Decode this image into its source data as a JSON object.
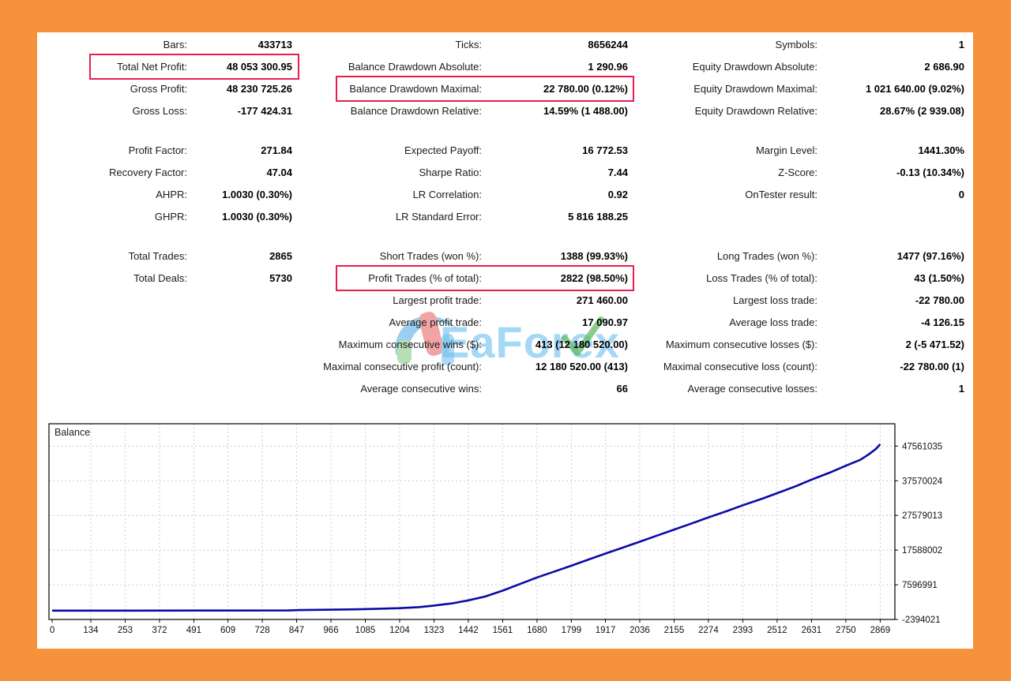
{
  "colors": {
    "frame_orange": "#F6923C",
    "highlight_red": "#E91E50",
    "line_navy": "#0A0AA8",
    "watermark_blue": "#6EC1F0",
    "grid_gray": "#CCCCCC"
  },
  "watermark": {
    "text": "EaForex"
  },
  "report": {
    "sections": [
      {
        "rows": [
          {
            "cells": [
              {
                "label": "Bars:",
                "value": "433713",
                "boxed": false
              },
              {
                "label": "Ticks:",
                "value": "8656244",
                "boxed": false
              },
              {
                "label": "Symbols:",
                "value": "1",
                "boxed": false
              }
            ]
          },
          {
            "cells": [
              {
                "label": "Total Net Profit:",
                "value": "48 053 300.95",
                "boxed": true
              },
              {
                "label": "Balance Drawdown Absolute:",
                "value": "1 290.96",
                "boxed": false
              },
              {
                "label": "Equity Drawdown Absolute:",
                "value": "2 686.90",
                "boxed": false
              }
            ]
          },
          {
            "cells": [
              {
                "label": "Gross Profit:",
                "value": "48 230 725.26",
                "boxed": false
              },
              {
                "label": "Balance Drawdown Maximal:",
                "value": "22 780.00 (0.12%)",
                "boxed": true
              },
              {
                "label": "Equity Drawdown Maximal:",
                "value": "1 021 640.00 (9.02%)",
                "boxed": false
              }
            ]
          },
          {
            "cells": [
              {
                "label": "Gross Loss:",
                "value": "-177 424.31",
                "boxed": false
              },
              {
                "label": "Balance Drawdown Relative:",
                "value": "14.59% (1 488.00)",
                "boxed": false
              },
              {
                "label": "Equity Drawdown Relative:",
                "value": "28.67% (2 939.08)",
                "boxed": false
              }
            ]
          }
        ]
      },
      {
        "rows": [
          {
            "cells": [
              {
                "label": "Profit Factor:",
                "value": "271.84",
                "boxed": false
              },
              {
                "label": "Expected Payoff:",
                "value": "16 772.53",
                "boxed": false
              },
              {
                "label": "Margin Level:",
                "value": "1441.30%",
                "boxed": false
              }
            ]
          },
          {
            "cells": [
              {
                "label": "Recovery Factor:",
                "value": "47.04",
                "boxed": false
              },
              {
                "label": "Sharpe Ratio:",
                "value": "7.44",
                "boxed": false
              },
              {
                "label": "Z-Score:",
                "value": "-0.13 (10.34%)",
                "boxed": false
              }
            ]
          },
          {
            "cells": [
              {
                "label": "AHPR:",
                "value": "1.0030 (0.30%)",
                "boxed": false
              },
              {
                "label": "LR Correlation:",
                "value": "0.92",
                "boxed": false
              },
              {
                "label": "OnTester result:",
                "value": "0",
                "boxed": false
              }
            ]
          },
          {
            "cells": [
              {
                "label": "GHPR:",
                "value": "1.0030 (0.30%)",
                "boxed": false
              },
              {
                "label": "LR Standard Error:",
                "value": "5 816 188.25",
                "boxed": false
              },
              {
                "label": "",
                "value": "",
                "boxed": false
              }
            ]
          }
        ]
      },
      {
        "rows": [
          {
            "cells": [
              {
                "label": "Total Trades:",
                "value": "2865",
                "boxed": false
              },
              {
                "label": "Short Trades (won %):",
                "value": "1388 (99.93%)",
                "boxed": false
              },
              {
                "label": "Long Trades (won %):",
                "value": "1477 (97.16%)",
                "boxed": false
              }
            ]
          },
          {
            "cells": [
              {
                "label": "Total Deals:",
                "value": "5730",
                "boxed": false
              },
              {
                "label": "Profit Trades (% of total):",
                "value": "2822 (98.50%)",
                "boxed": true
              },
              {
                "label": "Loss Trades (% of total):",
                "value": "43 (1.50%)",
                "boxed": false
              }
            ]
          },
          {
            "cells": [
              {
                "label": "",
                "value": "",
                "boxed": false
              },
              {
                "label": "Largest profit trade:",
                "value": "271 460.00",
                "boxed": false
              },
              {
                "label": "Largest loss trade:",
                "value": "-22 780.00",
                "boxed": false
              }
            ]
          },
          {
            "cells": [
              {
                "label": "",
                "value": "",
                "boxed": false
              },
              {
                "label": "Average profit trade:",
                "value": "17 090.97",
                "boxed": false
              },
              {
                "label": "Average loss trade:",
                "value": "-4 126.15",
                "boxed": false
              }
            ]
          },
          {
            "cells": [
              {
                "label": "",
                "value": "",
                "boxed": false
              },
              {
                "label": "Maximum consecutive wins ($):",
                "value": "413 (12 180 520.00)",
                "boxed": false
              },
              {
                "label": "Maximum consecutive losses ($):",
                "value": "2 (-5 471.52)",
                "boxed": false
              }
            ]
          },
          {
            "cells": [
              {
                "label": "",
                "value": "",
                "boxed": false
              },
              {
                "label": "Maximal consecutive profit (count):",
                "value": "12 180 520.00 (413)",
                "boxed": false
              },
              {
                "label": "Maximal consecutive loss (count):",
                "value": "-22 780.00 (1)",
                "boxed": false
              }
            ]
          },
          {
            "cells": [
              {
                "label": "",
                "value": "",
                "boxed": false
              },
              {
                "label": "Average consecutive wins:",
                "value": "66",
                "boxed": false
              },
              {
                "label": "Average consecutive losses:",
                "value": "1",
                "boxed": false
              }
            ]
          }
        ]
      }
    ]
  },
  "chart_data": {
    "type": "line",
    "title": "Balance",
    "xlabel": "",
    "ylabel": "",
    "xlim": [
      -11,
      2920
    ],
    "ylim": [
      -2394021,
      54000000
    ],
    "grid": true,
    "x_ticks": [
      0,
      134,
      253,
      372,
      491,
      609,
      728,
      847,
      966,
      1085,
      1204,
      1323,
      1442,
      1561,
      1680,
      1799,
      1917,
      2036,
      2155,
      2274,
      2393,
      2512,
      2631,
      2750,
      2869
    ],
    "y_ticks": [
      47561035,
      37570024,
      27579013,
      17588002,
      7596991,
      -2394021
    ],
    "series": [
      {
        "name": "Balance",
        "color": "#0A0AA8",
        "points": [
          [
            0,
            150000
          ],
          [
            300,
            150000
          ],
          [
            600,
            180000
          ],
          [
            820,
            200000
          ],
          [
            860,
            320000
          ],
          [
            950,
            400000
          ],
          [
            1050,
            520000
          ],
          [
            1120,
            650000
          ],
          [
            1204,
            850000
          ],
          [
            1270,
            1150000
          ],
          [
            1323,
            1600000
          ],
          [
            1390,
            2300000
          ],
          [
            1442,
            3100000
          ],
          [
            1500,
            4200000
          ],
          [
            1561,
            5900000
          ],
          [
            1620,
            7800000
          ],
          [
            1680,
            9700000
          ],
          [
            1740,
            11400000
          ],
          [
            1799,
            13100000
          ],
          [
            1860,
            14900000
          ],
          [
            1917,
            16600000
          ],
          [
            1980,
            18400000
          ],
          [
            2036,
            20000000
          ],
          [
            2100,
            21900000
          ],
          [
            2155,
            23500000
          ],
          [
            2220,
            25400000
          ],
          [
            2274,
            27000000
          ],
          [
            2340,
            28900000
          ],
          [
            2393,
            30500000
          ],
          [
            2460,
            32400000
          ],
          [
            2512,
            34000000
          ],
          [
            2580,
            36100000
          ],
          [
            2631,
            37900000
          ],
          [
            2700,
            40100000
          ],
          [
            2750,
            41900000
          ],
          [
            2800,
            43600000
          ],
          [
            2830,
            45200000
          ],
          [
            2855,
            46800000
          ],
          [
            2869,
            48100000
          ]
        ]
      }
    ]
  }
}
